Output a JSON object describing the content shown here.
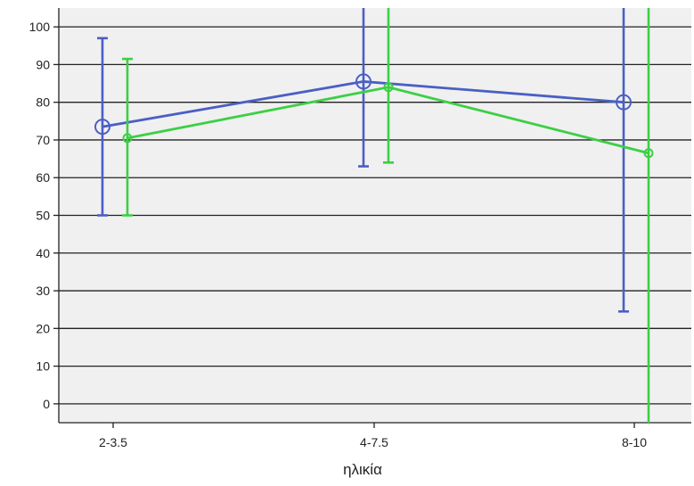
{
  "chart_data": {
    "type": "line",
    "title": "",
    "xlabel": "ηλικία",
    "ylabel": "",
    "categories": [
      "2-3.5",
      "4-7.5",
      "8-10"
    ],
    "ylim": [
      -5,
      105
    ],
    "yticks": [
      0,
      10,
      20,
      30,
      40,
      50,
      60,
      70,
      80,
      90,
      100
    ],
    "grid": true,
    "series": [
      {
        "color": "#4a5fc4",
        "marker": "circle",
        "values": [
          73.5,
          85.5,
          80
        ],
        "error_low": [
          50,
          63,
          24.5
        ],
        "error_high": [
          97,
          105,
          105
        ]
      },
      {
        "color": "#3ccf45",
        "marker": "small-circle",
        "values": [
          70.5,
          84,
          66.5
        ],
        "error_low": [
          50,
          64,
          -5
        ],
        "error_high": [
          91.5,
          105,
          105
        ]
      }
    ],
    "colors": {
      "background": "#f0f0f0",
      "gridline": "#222222"
    }
  }
}
